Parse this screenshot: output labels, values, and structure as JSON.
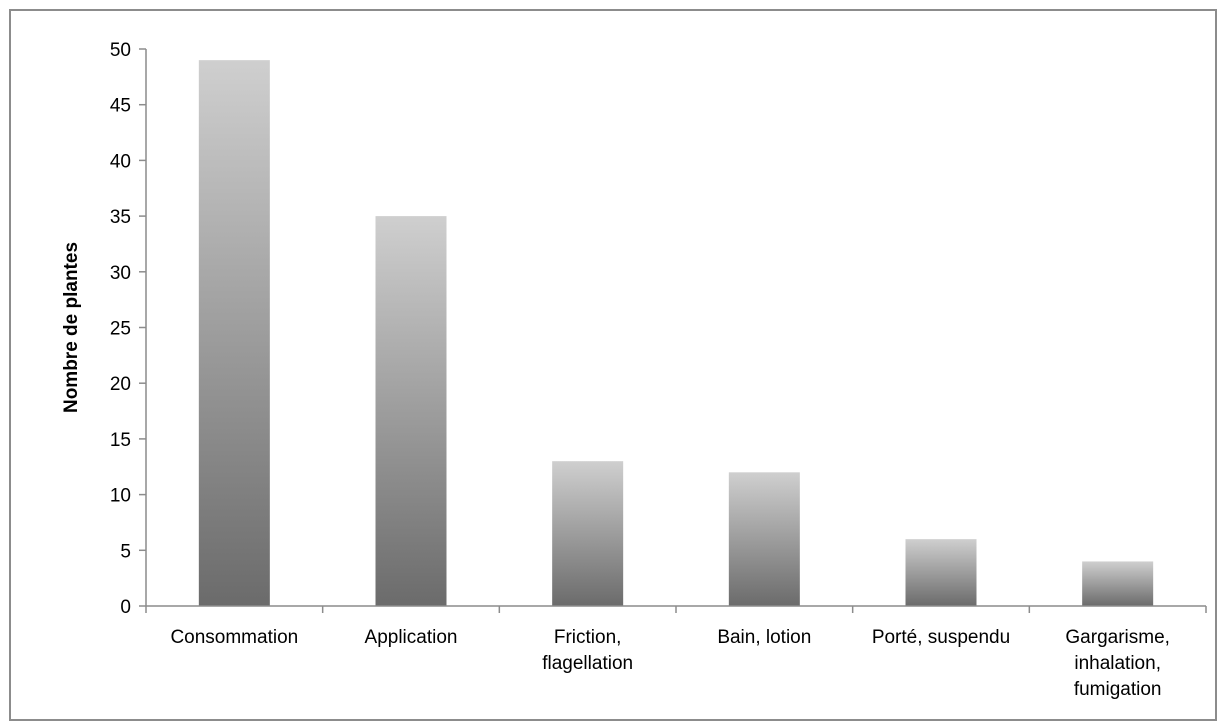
{
  "chart_data": {
    "type": "bar",
    "title": "",
    "xlabel": "",
    "ylabel": "Nombre de plantes",
    "ylim": [
      0,
      50
    ],
    "yticks": [
      0,
      5,
      10,
      15,
      20,
      25,
      30,
      35,
      40,
      45,
      50
    ],
    "grid": false,
    "legend": "none",
    "categories": [
      [
        "Consommation"
      ],
      [
        "Application"
      ],
      [
        "Friction,",
        "flagellation"
      ],
      [
        "Bain, lotion"
      ],
      [
        "Porté, suspendu"
      ],
      [
        "Gargarisme,",
        "inhalation,",
        "fumigation"
      ]
    ],
    "values": [
      49,
      35,
      13,
      12,
      6,
      4
    ],
    "colors": {
      "bar_top": "#cfcfcf",
      "bar_bottom": "#6b6b6b",
      "axis": "#8c8c8c",
      "frame": "#8c8c8c"
    }
  }
}
